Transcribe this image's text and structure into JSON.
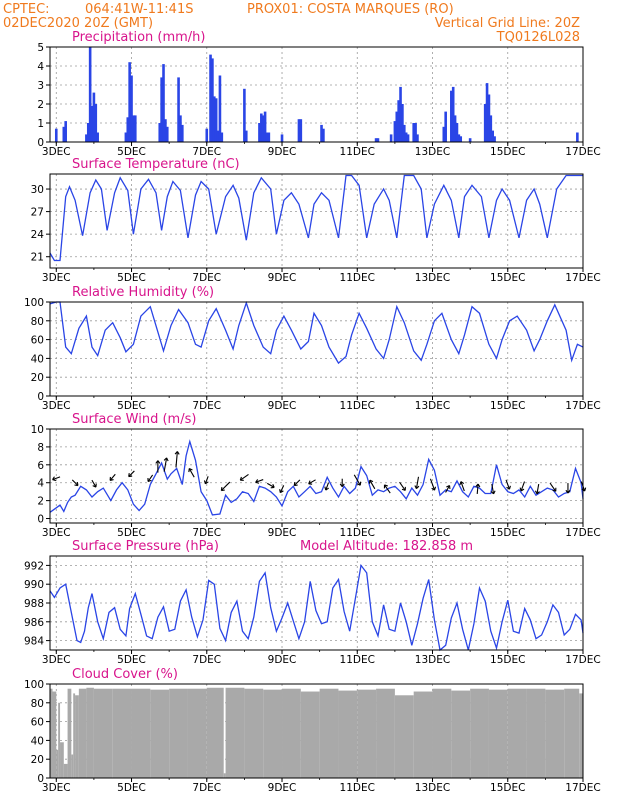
{
  "header": {
    "line1_left": "CPTEC:",
    "line1_coords": "064:41W-11:41S",
    "line1_station": "PROX01: COSTA MARQUES (RO)",
    "line2_left": "02DEC2020 20Z (GMT)",
    "line2_right": "Vertical Grid Line: 20Z",
    "line3_right": "TQ0126L028"
  },
  "colors": {
    "header": "#f07a1e",
    "panel_title": "#d8148c",
    "series": "#2a45e6",
    "arrow": "#000000",
    "cloud": "#a9a9a9"
  },
  "x_tick_labels": [
    "3DEC",
    "5DEC",
    "7DEC",
    "9DEC",
    "11DEC",
    "13DEC",
    "15DEC",
    "17DEC"
  ],
  "x_tick_days": [
    3,
    5,
    7,
    9,
    11,
    13,
    15,
    17
  ],
  "x_range_days": [
    2.833,
    17.0
  ],
  "chart_data": [
    {
      "id": "precip",
      "type": "bar",
      "title": "Precipitation (mm/h)",
      "ylim": [
        0,
        5
      ],
      "yticks": [
        0,
        1,
        2,
        3,
        4,
        5
      ],
      "grid": true,
      "x": [
        3.0,
        3.2,
        3.25,
        3.8,
        3.85,
        3.9,
        3.95,
        4.0,
        4.05,
        4.1,
        4.85,
        4.9,
        4.95,
        5.0,
        5.05,
        5.1,
        5.75,
        5.8,
        5.85,
        5.9,
        5.95,
        6.25,
        6.3,
        6.35,
        7.0,
        7.1,
        7.15,
        7.2,
        7.25,
        7.3,
        7.35,
        7.4,
        8.0,
        8.05,
        8.4,
        8.45,
        8.5,
        8.55,
        8.6,
        8.65,
        9.0,
        9.45,
        9.5,
        10.05,
        10.1,
        11.5,
        11.55,
        11.9,
        12.0,
        12.05,
        12.1,
        12.15,
        12.2,
        12.25,
        12.3,
        12.35,
        12.5,
        12.55,
        12.6,
        13.3,
        13.35,
        13.5,
        13.55,
        13.6,
        13.65,
        13.7,
        13.75,
        14.0,
        14.4,
        14.45,
        14.5,
        14.55,
        14.6,
        14.65,
        16.85
      ],
      "values": [
        0.7,
        0.8,
        1.1,
        0.4,
        1.0,
        5.0,
        1.9,
        2.6,
        2.0,
        0.5,
        0.5,
        1.3,
        4.2,
        3.5,
        1.4,
        1.4,
        1.0,
        3.4,
        4.1,
        1.2,
        0.8,
        3.4,
        1.4,
        0.9,
        0.7,
        4.6,
        4.4,
        2.4,
        2.3,
        0.6,
        3.5,
        0.5,
        2.8,
        0.6,
        1.0,
        1.5,
        1.4,
        1.6,
        0.5,
        0.5,
        0.4,
        1.2,
        1.2,
        0.9,
        0.7,
        0.2,
        0.2,
        0.4,
        1.1,
        1.6,
        2.2,
        2.9,
        2.0,
        0.9,
        0.5,
        0.4,
        1.0,
        1.0,
        0.4,
        0.8,
        1.6,
        2.7,
        2.9,
        1.4,
        1.0,
        0.4,
        0.3,
        0.2,
        2.0,
        3.1,
        2.5,
        1.4,
        0.6,
        0.3,
        0.5
      ]
    },
    {
      "id": "temp",
      "type": "line",
      "title": "Surface Temperature (nC)",
      "ylim": [
        19.5,
        32.0
      ],
      "yticks": [
        21,
        24,
        27,
        30
      ],
      "grid": true,
      "x": [
        2.833,
        2.95,
        3.1,
        3.25,
        3.35,
        3.5,
        3.7,
        3.9,
        4.05,
        4.2,
        4.35,
        4.55,
        4.7,
        4.9,
        5.05,
        5.25,
        5.45,
        5.65,
        5.8,
        5.95,
        6.1,
        6.3,
        6.5,
        6.7,
        6.85,
        7.05,
        7.25,
        7.5,
        7.7,
        7.85,
        8.05,
        8.25,
        8.45,
        8.7,
        8.85,
        9.05,
        9.25,
        9.45,
        9.7,
        9.85,
        10.05,
        10.25,
        10.5,
        10.7,
        10.85,
        11.05,
        11.25,
        11.45,
        11.7,
        11.85,
        12.05,
        12.25,
        12.5,
        12.7,
        12.85,
        13.05,
        13.3,
        13.5,
        13.7,
        13.85,
        14.05,
        14.3,
        14.5,
        14.7,
        14.85,
        15.05,
        15.3,
        15.5,
        15.7,
        15.85,
        16.05,
        16.3,
        16.55,
        16.7,
        16.85,
        17.0
      ],
      "values": [
        21.5,
        20.5,
        20.5,
        29.0,
        30.3,
        28.5,
        23.8,
        29.5,
        31.2,
        30.0,
        24.5,
        29.5,
        31.5,
        29.8,
        24.0,
        30.0,
        31.3,
        29.5,
        24.5,
        29.0,
        31.0,
        29.8,
        23.5,
        29.2,
        31.0,
        30.0,
        24.0,
        29.0,
        30.5,
        28.8,
        23.2,
        29.5,
        31.5,
        30.0,
        24.0,
        28.5,
        29.5,
        28.0,
        23.5,
        28.0,
        29.5,
        28.5,
        23.5,
        31.8,
        31.8,
        30.5,
        23.5,
        28.0,
        30.0,
        28.5,
        23.5,
        31.8,
        31.8,
        30.0,
        23.5,
        28.0,
        30.5,
        28.5,
        23.5,
        29.0,
        30.5,
        29.0,
        23.5,
        28.5,
        30.0,
        28.5,
        23.5,
        28.5,
        30.0,
        28.0,
        23.5,
        30.0,
        31.8,
        31.8,
        31.8,
        31.8
      ]
    },
    {
      "id": "rh",
      "type": "line",
      "title": "Relative Humidity (%)",
      "ylim": [
        0,
        100
      ],
      "yticks": [
        0,
        20,
        40,
        60,
        80,
        100
      ],
      "grid": true,
      "x": [
        2.833,
        3.0,
        3.1,
        3.25,
        3.4,
        3.6,
        3.8,
        3.95,
        4.1,
        4.3,
        4.5,
        4.7,
        4.85,
        5.05,
        5.25,
        5.5,
        5.7,
        5.85,
        6.05,
        6.25,
        6.5,
        6.7,
        6.85,
        7.05,
        7.25,
        7.5,
        7.7,
        7.85,
        8.05,
        8.25,
        8.5,
        8.7,
        8.85,
        9.05,
        9.25,
        9.5,
        9.7,
        9.85,
        10.05,
        10.25,
        10.5,
        10.7,
        10.85,
        11.05,
        11.25,
        11.5,
        11.7,
        11.85,
        12.05,
        12.25,
        12.5,
        12.7,
        12.85,
        13.05,
        13.25,
        13.5,
        13.7,
        13.85,
        14.05,
        14.25,
        14.5,
        14.7,
        14.85,
        15.05,
        15.25,
        15.5,
        15.7,
        15.85,
        16.05,
        16.25,
        16.55,
        16.7,
        16.85,
        17.0
      ],
      "values": [
        98,
        100,
        100,
        52,
        45,
        72,
        85,
        52,
        43,
        70,
        78,
        62,
        47,
        55,
        85,
        95,
        68,
        48,
        75,
        92,
        78,
        55,
        52,
        80,
        93,
        70,
        50,
        75,
        99,
        75,
        52,
        45,
        70,
        85,
        70,
        50,
        58,
        88,
        75,
        52,
        35,
        42,
        65,
        88,
        72,
        50,
        40,
        60,
        95,
        78,
        48,
        38,
        55,
        80,
        88,
        60,
        45,
        65,
        95,
        88,
        55,
        40,
        60,
        80,
        85,
        70,
        48,
        60,
        80,
        97,
        70,
        38,
        55,
        52
      ]
    },
    {
      "id": "wind",
      "type": "line",
      "title": "Surface Wind (m/s)",
      "ylim": [
        -0.5,
        10
      ],
      "yticks": [
        0,
        2,
        4,
        6,
        8,
        10
      ],
      "grid": true,
      "x": [
        2.833,
        3.0,
        3.1,
        3.2,
        3.3,
        3.4,
        3.5,
        3.65,
        3.8,
        3.95,
        4.1,
        4.25,
        4.45,
        4.6,
        4.75,
        4.9,
        5.05,
        5.2,
        5.35,
        5.5,
        5.65,
        5.8,
        5.95,
        6.05,
        6.2,
        6.35,
        6.45,
        6.55,
        6.7,
        6.85,
        7.0,
        7.15,
        7.35,
        7.5,
        7.65,
        7.8,
        7.95,
        8.1,
        8.25,
        8.4,
        8.55,
        8.7,
        8.85,
        9.0,
        9.15,
        9.3,
        9.45,
        9.6,
        9.75,
        9.9,
        10.05,
        10.2,
        10.35,
        10.5,
        10.65,
        10.8,
        10.95,
        11.1,
        11.25,
        11.4,
        11.55,
        11.7,
        11.85,
        12.0,
        12.15,
        12.3,
        12.45,
        12.6,
        12.75,
        12.9,
        13.05,
        13.2,
        13.35,
        13.5,
        13.65,
        13.8,
        13.95,
        14.1,
        14.25,
        14.4,
        14.55,
        14.7,
        14.85,
        15.0,
        15.15,
        15.3,
        15.45,
        15.6,
        15.75,
        15.9,
        16.05,
        16.2,
        16.35,
        16.5,
        16.65,
        16.8,
        16.95,
        17.0
      ],
      "values": [
        0.7,
        1.2,
        1.5,
        0.8,
        1.8,
        2.4,
        2.6,
        3.6,
        3.2,
        2.4,
        3.0,
        3.4,
        2.0,
        3.2,
        4.0,
        3.2,
        1.6,
        0.9,
        1.6,
        3.8,
        5.0,
        6.2,
        4.4,
        5.0,
        5.6,
        3.8,
        7.0,
        8.6,
        6.5,
        3.0,
        2.0,
        0.4,
        0.5,
        2.6,
        1.8,
        2.2,
        3.0,
        2.8,
        1.9,
        3.6,
        3.4,
        3.0,
        2.4,
        1.4,
        3.0,
        3.6,
        2.4,
        3.0,
        3.6,
        2.8,
        3.0,
        4.6,
        3.4,
        2.4,
        3.6,
        2.8,
        3.4,
        5.8,
        4.8,
        2.6,
        3.2,
        3.0,
        3.4,
        3.6,
        3.0,
        2.2,
        3.4,
        2.6,
        3.8,
        6.6,
        5.4,
        2.6,
        3.2,
        3.0,
        4.2,
        3.0,
        2.4,
        3.6,
        3.4,
        2.8,
        2.8,
        6.0,
        3.8,
        3.0,
        2.8,
        3.2,
        2.4,
        3.6,
        2.6,
        3.0,
        3.4,
        3.2,
        2.4,
        2.8,
        3.0,
        5.6,
        4.0,
        2.2
      ]
    },
    {
      "id": "pressure",
      "type": "line",
      "title": "Surface Pressure (hPa)",
      "subtitle": "Model Altitude: 182.858 m",
      "ylim": [
        983.0,
        993.0
      ],
      "yticks": [
        984,
        986,
        988,
        990,
        992
      ],
      "grid": true,
      "x": [
        2.833,
        2.95,
        3.1,
        3.25,
        3.4,
        3.55,
        3.65,
        3.75,
        3.85,
        3.95,
        4.1,
        4.25,
        4.4,
        4.55,
        4.7,
        4.85,
        4.95,
        5.1,
        5.25,
        5.4,
        5.55,
        5.7,
        5.85,
        6.0,
        6.15,
        6.3,
        6.45,
        6.6,
        6.75,
        6.9,
        7.05,
        7.2,
        7.35,
        7.5,
        7.65,
        7.8,
        7.95,
        8.1,
        8.25,
        8.4,
        8.55,
        8.7,
        8.85,
        9.0,
        9.15,
        9.3,
        9.45,
        9.6,
        9.75,
        9.9,
        10.05,
        10.2,
        10.35,
        10.5,
        10.65,
        10.8,
        10.95,
        11.1,
        11.25,
        11.4,
        11.55,
        11.7,
        11.85,
        12.0,
        12.15,
        12.3,
        12.45,
        12.6,
        12.75,
        12.9,
        13.05,
        13.2,
        13.35,
        13.5,
        13.65,
        13.8,
        13.95,
        14.1,
        14.25,
        14.4,
        14.55,
        14.7,
        14.85,
        15.0,
        15.15,
        15.3,
        15.45,
        15.6,
        15.75,
        15.9,
        16.05,
        16.2,
        16.35,
        16.5,
        16.65,
        16.8,
        16.95,
        17.0
      ],
      "values": [
        989.3,
        988.6,
        989.6,
        990.0,
        987.0,
        984.0,
        983.8,
        985.0,
        987.5,
        989.0,
        986.0,
        984.2,
        987.0,
        987.5,
        985.2,
        984.5,
        987.4,
        989.0,
        986.8,
        984.5,
        984.2,
        986.5,
        987.6,
        985.0,
        985.2,
        988.2,
        989.4,
        986.5,
        984.4,
        986.2,
        990.4,
        990.0,
        985.3,
        984.0,
        987.0,
        988.2,
        985.0,
        984.2,
        986.5,
        990.3,
        991.2,
        987.5,
        985.0,
        986.4,
        988.0,
        986.1,
        984.2,
        986.0,
        990.3,
        987.2,
        985.8,
        986.0,
        989.6,
        990.5,
        987.1,
        985.0,
        988.5,
        992.0,
        991.2,
        986.0,
        984.5,
        987.8,
        985.2,
        985.0,
        988.0,
        986.0,
        983.5,
        985.8,
        988.5,
        990.5,
        986.2,
        983.0,
        983.5,
        986.4,
        988.0,
        985.2,
        983.0,
        985.8,
        989.6,
        988.2,
        985.0,
        983.2,
        986.0,
        988.3,
        985.0,
        984.8,
        987.4,
        986.2,
        984.2,
        984.6,
        986.0,
        987.8,
        987.0,
        984.6,
        985.2,
        986.8,
        986.2,
        984.8
      ]
    },
    {
      "id": "cloud",
      "type": "bar",
      "title": "Cloud Cover (%)",
      "ylim": [
        0,
        100
      ],
      "yticks": [
        0,
        20,
        40,
        60,
        80,
        100
      ],
      "grid": true,
      "x": [
        2.833,
        2.9,
        3.0,
        3.05,
        3.1,
        3.2,
        3.3,
        3.4,
        3.45,
        3.5,
        3.6,
        3.8,
        4.0,
        4.5,
        5.0,
        5.5,
        6.0,
        6.5,
        7.0,
        7.45,
        7.5,
        8.0,
        8.5,
        9.0,
        9.5,
        10.0,
        10.5,
        11.0,
        11.5,
        12.0,
        12.5,
        13.0,
        13.5,
        14.0,
        14.5,
        15.0,
        15.5,
        16.0,
        16.5,
        16.9,
        17.0
      ],
      "values": [
        95,
        92,
        30,
        80,
        38,
        15,
        95,
        25,
        90,
        88,
        95,
        96,
        95,
        95,
        95,
        94,
        95,
        95,
        96,
        5,
        96,
        95,
        94,
        95,
        92,
        95,
        93,
        94,
        95,
        88,
        92,
        95,
        93,
        95,
        94,
        95,
        95,
        94,
        95,
        90,
        95
      ]
    }
  ],
  "wind_arrows": {
    "x": [
      3.0,
      3.5,
      4.0,
      4.5,
      5.0,
      5.5,
      5.7,
      5.9,
      6.2,
      6.6,
      7.0,
      7.5,
      8.0,
      8.4,
      8.7,
      9.0,
      9.4,
      9.8,
      10.2,
      10.6,
      11.0,
      11.4,
      11.8,
      12.2,
      12.6,
      13.0,
      13.4,
      13.8,
      14.2,
      14.6,
      15.0,
      15.4,
      15.8,
      16.2,
      16.6,
      17.0
    ],
    "y": [
      4.5,
      4.0,
      3.9,
      4.6,
      5.0,
      4.5,
      5.8,
      6.0,
      6.6,
      5.1,
      4.3,
      3.6,
      4.6,
      4.2,
      3.7,
      3.3,
      4.0,
      4.1,
      3.6,
      4.0,
      4.3,
      3.8,
      3.3,
      3.6,
      4.0,
      3.8,
      3.3,
      3.6,
      3.3,
      3.3,
      3.8,
      3.6,
      3.3,
      3.5,
      3.4,
      3.6
    ],
    "dir_deg": [
      200,
      315,
      300,
      230,
      225,
      235,
      90,
      80,
      85,
      120,
      250,
      225,
      215,
      200,
      330,
      245,
      225,
      210,
      250,
      270,
      300,
      120,
      125,
      305,
      260,
      290,
      60,
      110,
      85,
      280,
      290,
      250,
      260,
      305,
      270,
      290
    ],
    "len": [
      8,
      8,
      8,
      8,
      8,
      8,
      12,
      14,
      16,
      10,
      8,
      12,
      10,
      8,
      8,
      8,
      8,
      8,
      8,
      8,
      12,
      10,
      10,
      10,
      12,
      12,
      8,
      10,
      10,
      10,
      10,
      10,
      10,
      10,
      10,
      10
    ]
  }
}
